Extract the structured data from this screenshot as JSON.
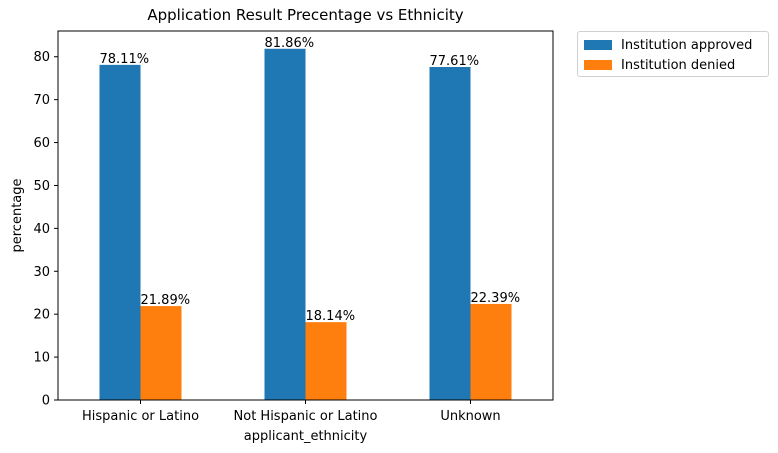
{
  "chart_data": {
    "type": "bar",
    "title": "Application Result Precentage vs Ethnicity",
    "xlabel": "applicant_ethnicity",
    "ylabel": "percentage",
    "categories": [
      "Hispanic or Latino",
      "Not Hispanic or Latino",
      "Unknown"
    ],
    "series": [
      {
        "name": "Institution approved",
        "color": "#1f77b4",
        "values": [
          78.11,
          81.86,
          77.61
        ],
        "labels": [
          "78.11%",
          "81.86%",
          "77.61%"
        ]
      },
      {
        "name": "Institution denied",
        "color": "#ff7f0e",
        "values": [
          21.89,
          18.14,
          22.39
        ],
        "labels": [
          "21.89%",
          "18.14%",
          "22.39%"
        ]
      }
    ],
    "ylim": [
      0,
      86
    ],
    "yticks": [
      0,
      10,
      20,
      30,
      40,
      50,
      60,
      70,
      80
    ],
    "grid": false,
    "legend": "outside top-right"
  }
}
